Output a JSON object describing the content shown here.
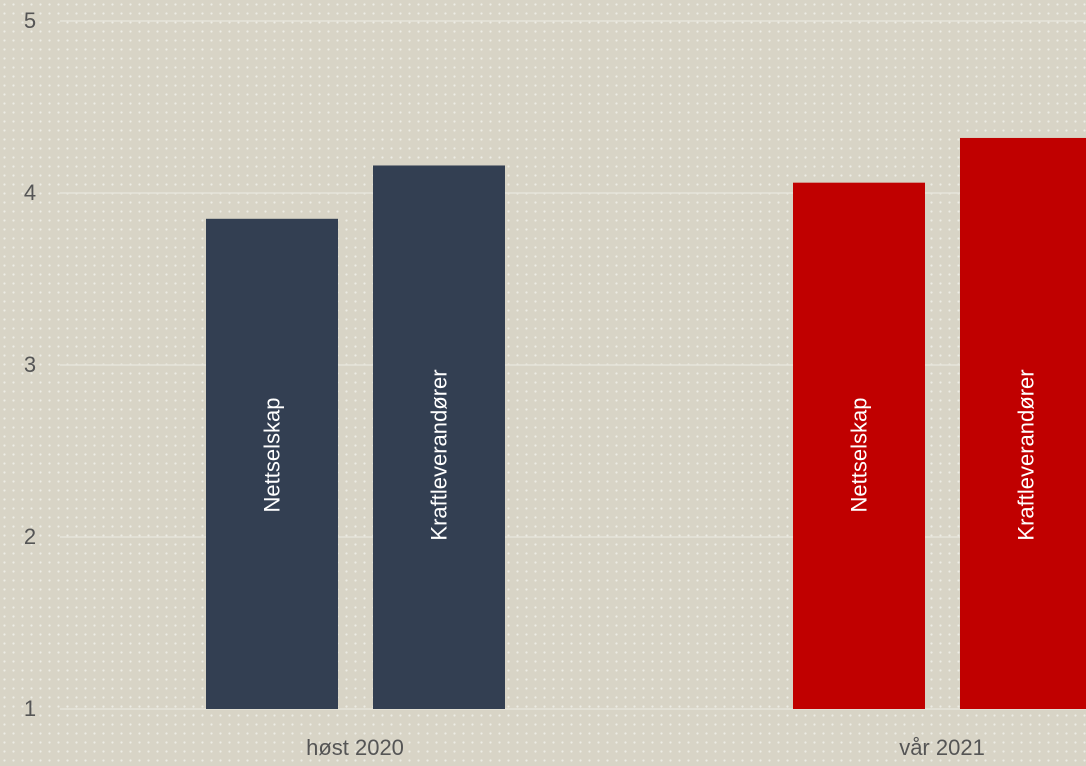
{
  "chart_data": {
    "type": "bar",
    "categories": [
      "høst 2020",
      "vår 2021"
    ],
    "bars": [
      {
        "category": "høst 2020",
        "label": "Nettselskap",
        "value": 3.85,
        "color": "#333f52"
      },
      {
        "category": "høst 2020",
        "label": "Kraftleverandører",
        "value": 4.16,
        "color": "#333f52"
      },
      {
        "category": "vår 2021",
        "label": "Nettselskap",
        "value": 4.06,
        "color": "#c00000"
      },
      {
        "category": "vår 2021",
        "label": "Kraftleverandører",
        "value": 4.32,
        "color": "#c00000"
      }
    ],
    "ylim": [
      1,
      5
    ],
    "yticks": [
      1,
      2,
      3,
      4,
      5
    ],
    "grid": true
  }
}
